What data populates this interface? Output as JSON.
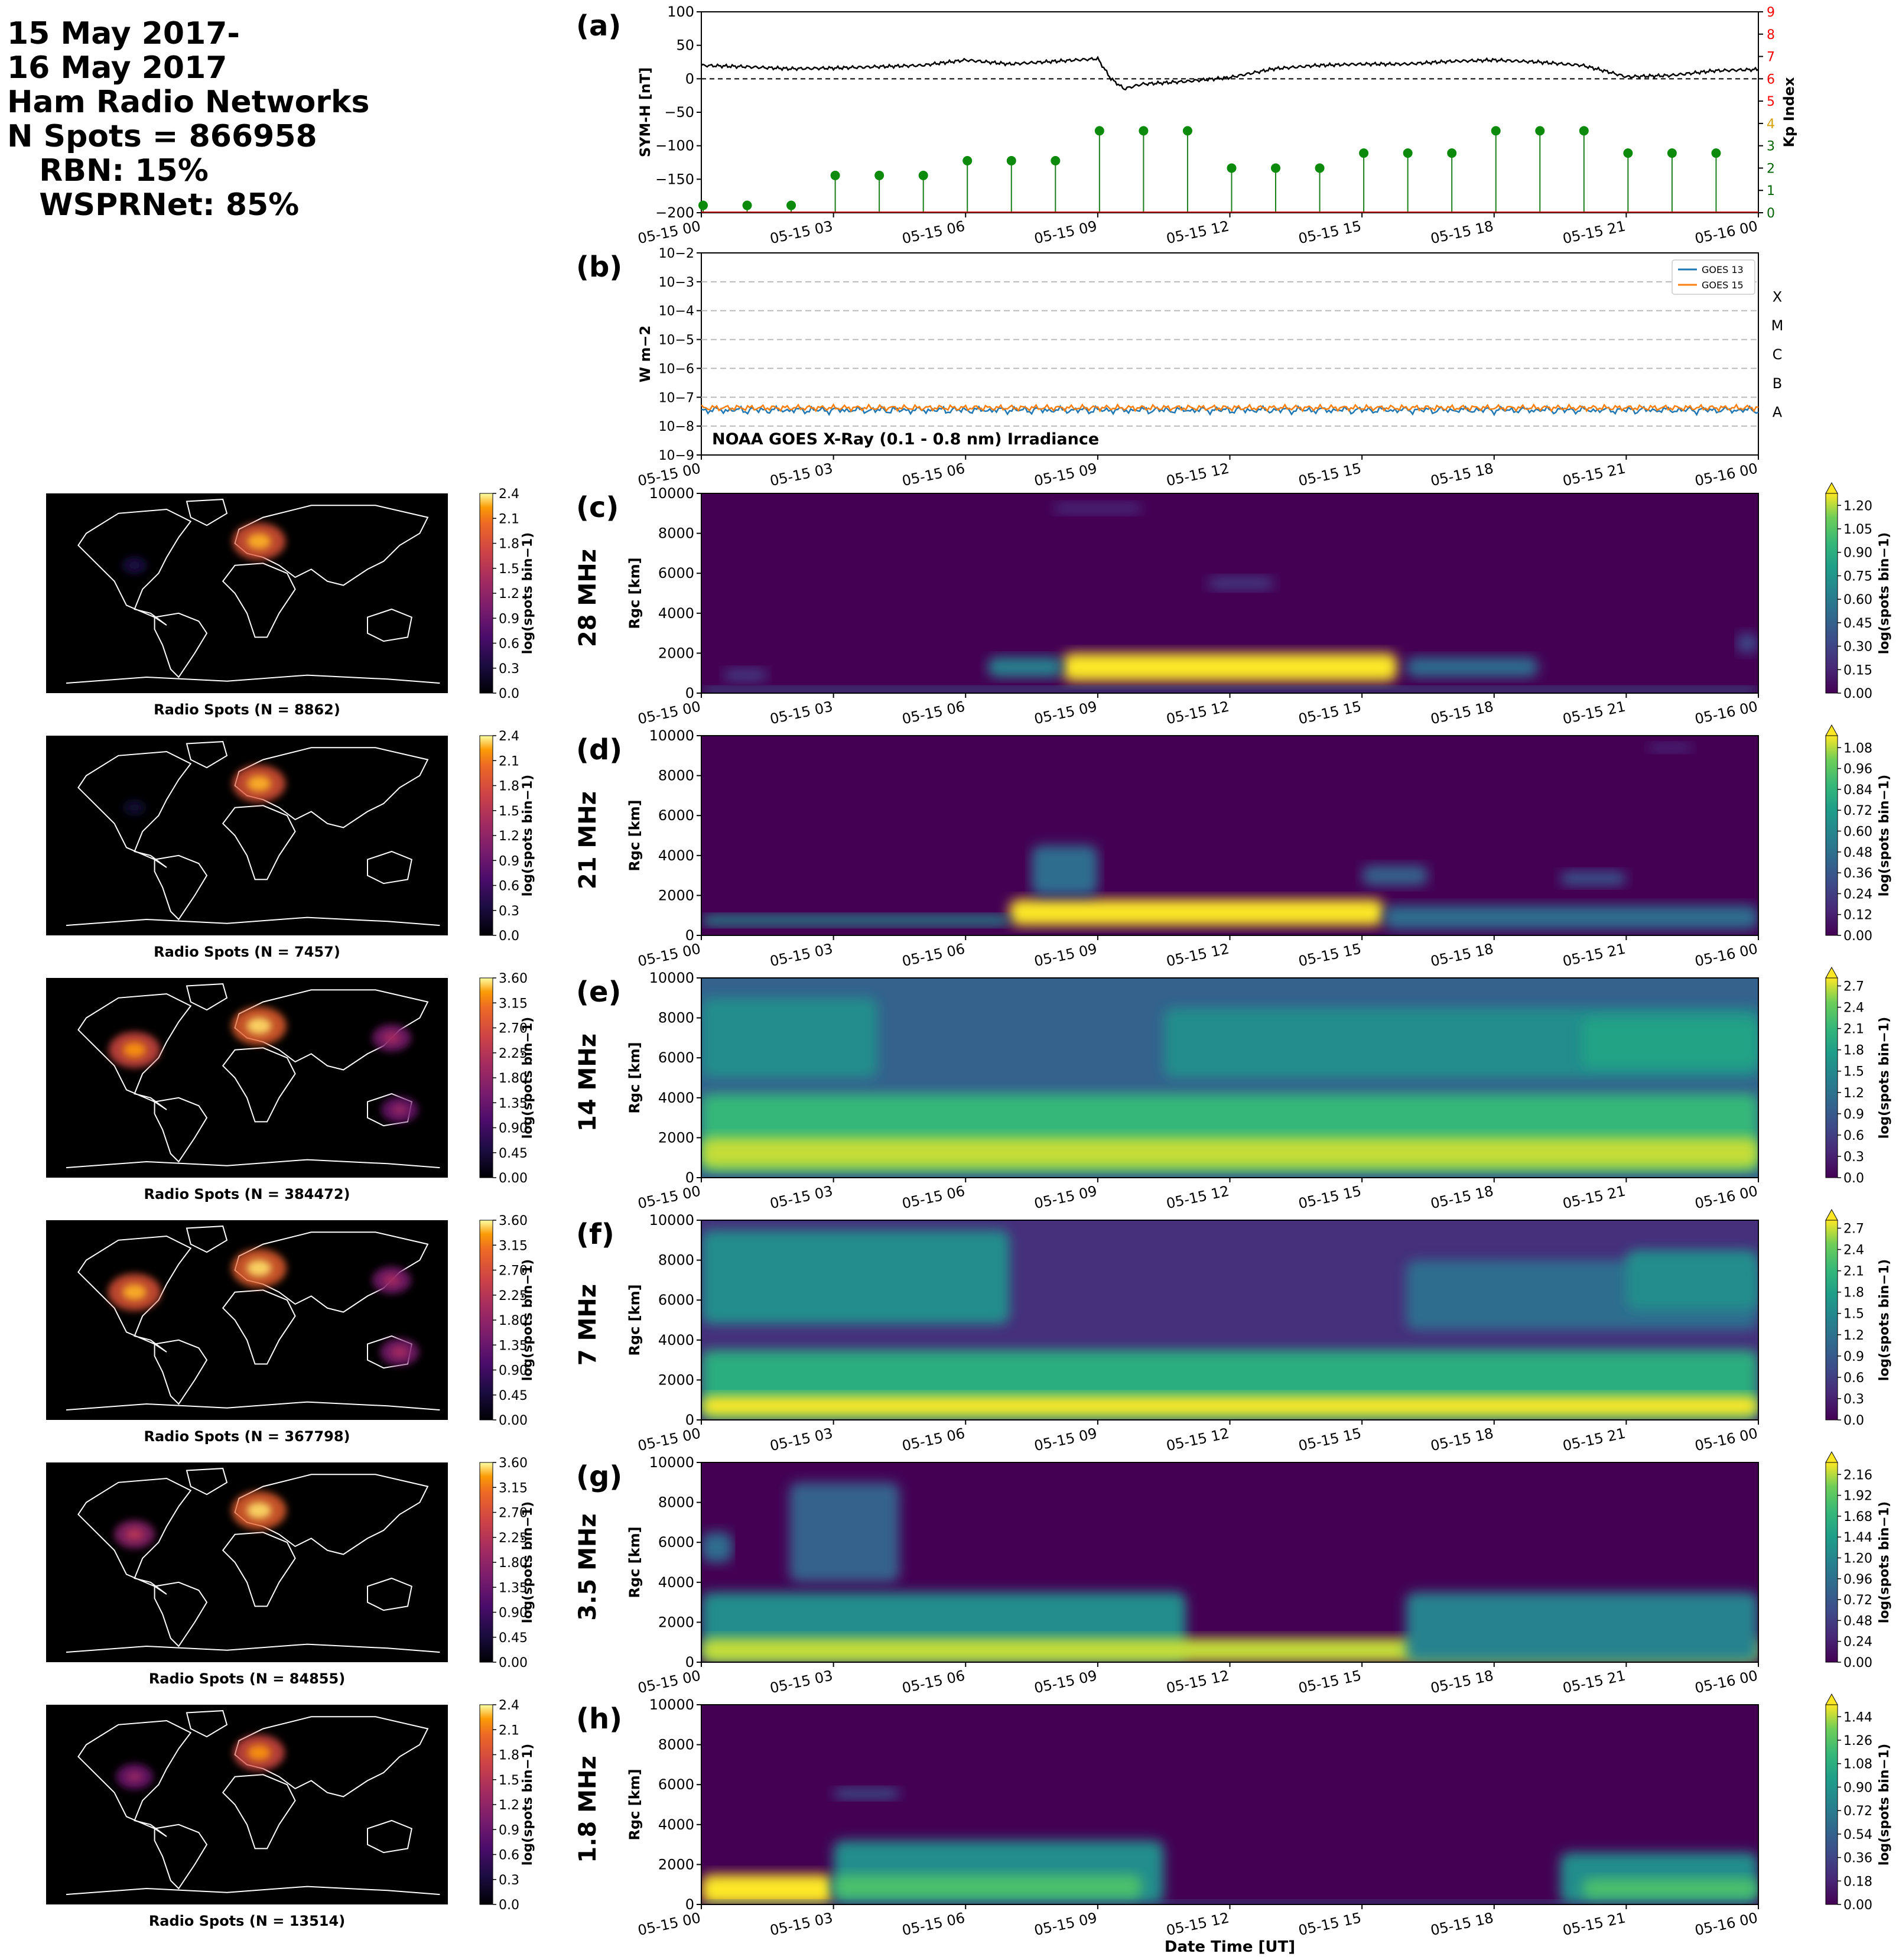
{
  "header": {
    "lines": [
      "15 May 2017-",
      "16 May 2017",
      "Ham Radio Networks",
      "N Spots = 866958",
      "   RBN: 15%",
      "   WSPRNet: 85%"
    ]
  },
  "time_axis": {
    "tick_labels": [
      "05-15 00",
      "05-15 03",
      "05-15 06",
      "05-15 09",
      "05-15 12",
      "05-15 15",
      "05-15 18",
      "05-15 21",
      "05-16 00"
    ],
    "xlabel": "Date Time [UT]"
  },
  "colors": {
    "symh_line": "#000000",
    "kp_stem": "#1a7f1a",
    "kp_marker": "#0b8a0b",
    "goes13": "#1f77b4",
    "goes15": "#ff7f0e",
    "kp_axis_low": "#006400",
    "kp_axis_mid": "#d4a000",
    "kp_axis_high": "#ff0000",
    "viridis_dark": "#440154",
    "viridis_yellow": "#fde725",
    "inferno_mid": "#bc3754",
    "map_land_outline": "#ffffff",
    "map_background": "#000000"
  },
  "chart_data": [
    {
      "panel": "(a)",
      "type": "line",
      "ylabel": "SYM-H [nT]",
      "ylim": [
        -200,
        100
      ],
      "yticks": [
        "100",
        "50",
        "0",
        "−50",
        "−100",
        "−150",
        "−200"
      ],
      "series": [
        {
          "name": "SYM-H",
          "x_hours": [
            0,
            1,
            2,
            3,
            4,
            5,
            6,
            7,
            8,
            9,
            9.3,
            9.6,
            10,
            11,
            12,
            13,
            14,
            15,
            16,
            17,
            18,
            19,
            20,
            20.5,
            21,
            22,
            23,
            24
          ],
          "values": [
            20,
            18,
            15,
            16,
            18,
            20,
            28,
            22,
            26,
            30,
            0,
            -15,
            -8,
            -4,
            2,
            15,
            20,
            22,
            22,
            26,
            28,
            25,
            20,
            12,
            3,
            5,
            12,
            14
          ]
        }
      ],
      "right_axis": {
        "ylabel": "Kp Index",
        "ylim": [
          0,
          9
        ],
        "ticks": [
          "0",
          "1",
          "2",
          "3",
          "4",
          "5",
          "6",
          "7",
          "8",
          "9"
        ],
        "series": [
          {
            "name": "Kp",
            "type": "stem",
            "x_hours": [
              0,
              1,
              2,
              3,
              4,
              5,
              6,
              7,
              8,
              9,
              10,
              11,
              12,
              13,
              14,
              15,
              16,
              17,
              18,
              19,
              20,
              21,
              22,
              23
            ],
            "values": [
              0.33,
              0.33,
              0.33,
              1.67,
              1.67,
              1.67,
              2.33,
              2.33,
              2.33,
              3.67,
              3.67,
              3.67,
              2.0,
              2.0,
              2.0,
              2.67,
              2.67,
              2.67,
              3.67,
              3.67,
              3.67,
              2.67,
              2.67,
              2.67
            ]
          }
        ]
      }
    },
    {
      "panel": "(b)",
      "type": "line",
      "ylabel": "W m−2",
      "yscale": "log",
      "ylim": [
        1e-09,
        0.01
      ],
      "yticks": [
        "10−9",
        "10−8",
        "10−7",
        "10−6",
        "10−5",
        "10−4",
        "10−3",
        "10−2"
      ],
      "flare_classes": [
        "A",
        "B",
        "C",
        "M",
        "X"
      ],
      "annotation": "NOAA GOES X-Ray (0.1 - 0.8 nm) Irradiance",
      "series": [
        {
          "name": "GOES 13",
          "level": 3.8e-08
        },
        {
          "name": "GOES 15",
          "level": 4.3e-08
        }
      ]
    },
    {
      "panel": "(c)",
      "band": "28 MHz",
      "type": "heatmap",
      "ylabel": "Rgc [km]",
      "ylim": [
        0,
        10000
      ],
      "yticks": [
        "0",
        "2000",
        "4000",
        "6000",
        "8000",
        "10000"
      ],
      "colorbar": {
        "label": "log(spots bin−1)",
        "ticks": [
          "0.00",
          "0.15",
          "0.30",
          "0.45",
          "0.60",
          "0.75",
          "0.90",
          "1.05",
          "1.20"
        ]
      },
      "blobs": [
        {
          "t0": 8.2,
          "t1": 15.8,
          "r0": 600,
          "r1": 2000,
          "v": 1.0
        },
        {
          "t0": 6.5,
          "t1": 8.2,
          "r0": 800,
          "r1": 1800,
          "v": 0.5
        },
        {
          "t0": 16.0,
          "t1": 19.0,
          "r0": 800,
          "r1": 1800,
          "v": 0.4
        },
        {
          "t0": 0,
          "t1": 24,
          "r0": 0,
          "r1": 300,
          "v": 0.35
        },
        {
          "t0": 0.5,
          "t1": 1.5,
          "r0": 600,
          "r1": 1200,
          "v": 0.2
        },
        {
          "t0": 8.0,
          "t1": 10.0,
          "r0": 9000,
          "r1": 9500,
          "v": 0.15
        },
        {
          "t0": 11.5,
          "t1": 13.0,
          "r0": 5200,
          "r1": 5800,
          "v": 0.2
        },
        {
          "t0": 23.5,
          "t1": 24,
          "r0": 2000,
          "r1": 3000,
          "v": 0.25
        }
      ],
      "map": {
        "caption": "Radio Spots (N = 8862)",
        "colorbar_ticks": [
          "0.0",
          "0.3",
          "0.6",
          "0.9",
          "1.2",
          "1.5",
          "1.8",
          "2.1",
          "2.4"
        ],
        "hotspots": [
          {
            "region": "europe",
            "v": 0.9
          },
          {
            "region": "us",
            "v": 0.15
          }
        ]
      }
    },
    {
      "panel": "(d)",
      "band": "21 MHz",
      "type": "heatmap",
      "ylabel": "Rgc [km]",
      "ylim": [
        0,
        10000
      ],
      "yticks": [
        "0",
        "2000",
        "4000",
        "6000",
        "8000",
        "10000"
      ],
      "colorbar": {
        "label": "log(spots bin−1)",
        "ticks": [
          "0.00",
          "0.12",
          "0.24",
          "0.36",
          "0.48",
          "0.60",
          "0.72",
          "0.84",
          "0.96",
          "1.08"
        ]
      },
      "blobs": [
        {
          "t0": 7.0,
          "t1": 15.5,
          "r0": 500,
          "r1": 1800,
          "v": 1.0
        },
        {
          "t0": 0,
          "t1": 7.0,
          "r0": 500,
          "r1": 1000,
          "v": 0.55
        },
        {
          "t0": 15.5,
          "t1": 24,
          "r0": 300,
          "r1": 1500,
          "v": 0.4
        },
        {
          "t0": 7.5,
          "t1": 9.0,
          "r0": 2000,
          "r1": 4500,
          "v": 0.4
        },
        {
          "t0": 15.0,
          "t1": 16.5,
          "r0": 2500,
          "r1": 3500,
          "v": 0.35
        },
        {
          "t0": 19.5,
          "t1": 21.0,
          "r0": 2500,
          "r1": 3200,
          "v": 0.3
        },
        {
          "t0": 21.5,
          "t1": 22.5,
          "r0": 9200,
          "r1": 9600,
          "v": 0.15
        }
      ],
      "map": {
        "caption": "Radio Spots (N = 7457)",
        "colorbar_ticks": [
          "0.0",
          "0.3",
          "0.6",
          "0.9",
          "1.2",
          "1.5",
          "1.8",
          "2.1",
          "2.4"
        ],
        "hotspots": [
          {
            "region": "europe",
            "v": 0.9
          },
          {
            "region": "us",
            "v": 0.1
          }
        ]
      }
    },
    {
      "panel": "(e)",
      "band": "14 MHz",
      "type": "heatmap",
      "ylabel": "Rgc [km]",
      "ylim": [
        0,
        10000
      ],
      "yticks": [
        "0",
        "2000",
        "4000",
        "6000",
        "8000",
        "10000"
      ],
      "colorbar": {
        "label": "log(spots bin−1)",
        "ticks": [
          "0.0",
          "0.3",
          "0.6",
          "0.9",
          "1.2",
          "1.5",
          "1.8",
          "2.1",
          "2.4",
          "2.7"
        ]
      },
      "background": 0.35,
      "blobs": [
        {
          "t0": 0,
          "t1": 24,
          "r0": 300,
          "r1": 4200,
          "v": 0.75
        },
        {
          "t0": 0,
          "t1": 24,
          "r0": 500,
          "r1": 2000,
          "v": 0.95
        },
        {
          "t0": 0,
          "t1": 4.0,
          "r0": 5000,
          "r1": 9000,
          "v": 0.55
        },
        {
          "t0": 10.5,
          "t1": 24,
          "r0": 5000,
          "r1": 8500,
          "v": 0.55
        },
        {
          "t0": 20.0,
          "t1": 24,
          "r0": 5500,
          "r1": 8000,
          "v": 0.65
        },
        {
          "t0": 0,
          "t1": 24,
          "r0": 0,
          "r1": 150,
          "v": 0.3
        }
      ],
      "map": {
        "caption": "Radio Spots (N = 384472)",
        "colorbar_ticks": [
          "0.00",
          "0.45",
          "0.90",
          "1.35",
          "1.80",
          "2.25",
          "2.70",
          "3.15",
          "3.60"
        ],
        "hotspots": [
          {
            "region": "europe",
            "v": 0.95
          },
          {
            "region": "us",
            "v": 0.85
          },
          {
            "region": "japan",
            "v": 0.5
          },
          {
            "region": "australia",
            "v": 0.45
          }
        ]
      }
    },
    {
      "panel": "(f)",
      "band": "7 MHz",
      "type": "heatmap",
      "ylabel": "Rgc [km]",
      "ylim": [
        0,
        10000
      ],
      "yticks": [
        "0",
        "2000",
        "4000",
        "6000",
        "8000",
        "10000"
      ],
      "colorbar": {
        "label": "log(spots bin−1)",
        "ticks": [
          "0.0",
          "0.3",
          "0.6",
          "0.9",
          "1.2",
          "1.5",
          "1.8",
          "2.1",
          "2.4",
          "2.7"
        ]
      },
      "background": 0.15,
      "blobs": [
        {
          "t0": 0,
          "t1": 24,
          "r0": 0,
          "r1": 3500,
          "v": 0.7
        },
        {
          "t0": 0,
          "t1": 24,
          "r0": 200,
          "r1": 1200,
          "v": 1.0
        },
        {
          "t0": 0,
          "t1": 7.0,
          "r0": 4800,
          "r1": 9500,
          "v": 0.55
        },
        {
          "t0": 16.0,
          "t1": 24,
          "r0": 4500,
          "r1": 8000,
          "v": 0.4
        },
        {
          "t0": 21.0,
          "t1": 24,
          "r0": 5500,
          "r1": 8500,
          "v": 0.55
        }
      ],
      "map": {
        "caption": "Radio Spots (N = 367798)",
        "colorbar_ticks": [
          "0.00",
          "0.45",
          "0.90",
          "1.35",
          "1.80",
          "2.25",
          "2.70",
          "3.15",
          "3.60"
        ],
        "hotspots": [
          {
            "region": "europe",
            "v": 0.95
          },
          {
            "region": "us",
            "v": 0.9
          },
          {
            "region": "japan",
            "v": 0.5
          },
          {
            "region": "australia",
            "v": 0.5
          }
        ]
      }
    },
    {
      "panel": "(g)",
      "band": "3.5 MHz",
      "type": "heatmap",
      "ylabel": "Rgc [km]",
      "ylim": [
        0,
        10000
      ],
      "yticks": [
        "0",
        "2000",
        "4000",
        "6000",
        "8000",
        "10000"
      ],
      "colorbar": {
        "label": "log(spots bin−1)",
        "ticks": [
          "0.00",
          "0.24",
          "0.48",
          "0.72",
          "0.96",
          "1.20",
          "1.44",
          "1.68",
          "1.92",
          "2.16"
        ]
      },
      "blobs": [
        {
          "t0": 0,
          "t1": 11.0,
          "r0": 0,
          "r1": 3500,
          "v": 0.55
        },
        {
          "t0": 0,
          "t1": 24,
          "r0": 0,
          "r1": 1200,
          "v": 0.95
        },
        {
          "t0": 16.0,
          "t1": 24,
          "r0": 0,
          "r1": 3500,
          "v": 0.5
        },
        {
          "t0": 2.0,
          "t1": 4.5,
          "r0": 4000,
          "r1": 9000,
          "v": 0.35
        },
        {
          "t0": 0,
          "t1": 0.7,
          "r0": 5000,
          "r1": 6500,
          "v": 0.4
        }
      ],
      "map": {
        "caption": "Radio Spots (N = 84855)",
        "colorbar_ticks": [
          "0.00",
          "0.45",
          "0.90",
          "1.35",
          "1.80",
          "2.25",
          "2.70",
          "3.15",
          "3.60"
        ],
        "hotspots": [
          {
            "region": "europe",
            "v": 0.95
          },
          {
            "region": "us",
            "v": 0.55
          }
        ]
      }
    },
    {
      "panel": "(h)",
      "band": "1.8 MHz",
      "type": "heatmap",
      "ylabel": "Rgc [km]",
      "ylim": [
        0,
        10000
      ],
      "yticks": [
        "0",
        "2000",
        "4000",
        "6000",
        "8000",
        "10000"
      ],
      "colorbar": {
        "label": "log(spots bin−1)",
        "ticks": [
          "0.00",
          "0.18",
          "0.36",
          "0.54",
          "0.72",
          "0.90",
          "1.08",
          "1.26",
          "1.44"
        ]
      },
      "blobs": [
        {
          "t0": 0,
          "t1": 3.0,
          "r0": 0,
          "r1": 1500,
          "v": 1.0
        },
        {
          "t0": 3.0,
          "t1": 10.5,
          "r0": 0,
          "r1": 3200,
          "v": 0.55
        },
        {
          "t0": 3.0,
          "t1": 10.0,
          "r0": 300,
          "r1": 1500,
          "v": 0.8
        },
        {
          "t0": 19.5,
          "t1": 24,
          "r0": 0,
          "r1": 2600,
          "v": 0.55
        },
        {
          "t0": 20.0,
          "t1": 24,
          "r0": 300,
          "r1": 1300,
          "v": 0.8
        },
        {
          "t0": 3.0,
          "t1": 4.5,
          "r0": 5300,
          "r1": 5800,
          "v": 0.3
        },
        {
          "t0": 0,
          "t1": 24,
          "r0": 0,
          "r1": 200,
          "v": 0.4
        }
      ],
      "map": {
        "caption": "Radio Spots (N = 13514)",
        "colorbar_ticks": [
          "0.0",
          "0.3",
          "0.6",
          "0.9",
          "1.2",
          "1.5",
          "1.8",
          "2.1",
          "2.4"
        ],
        "hotspots": [
          {
            "region": "europe",
            "v": 0.85
          },
          {
            "region": "us",
            "v": 0.45
          }
        ]
      }
    }
  ]
}
